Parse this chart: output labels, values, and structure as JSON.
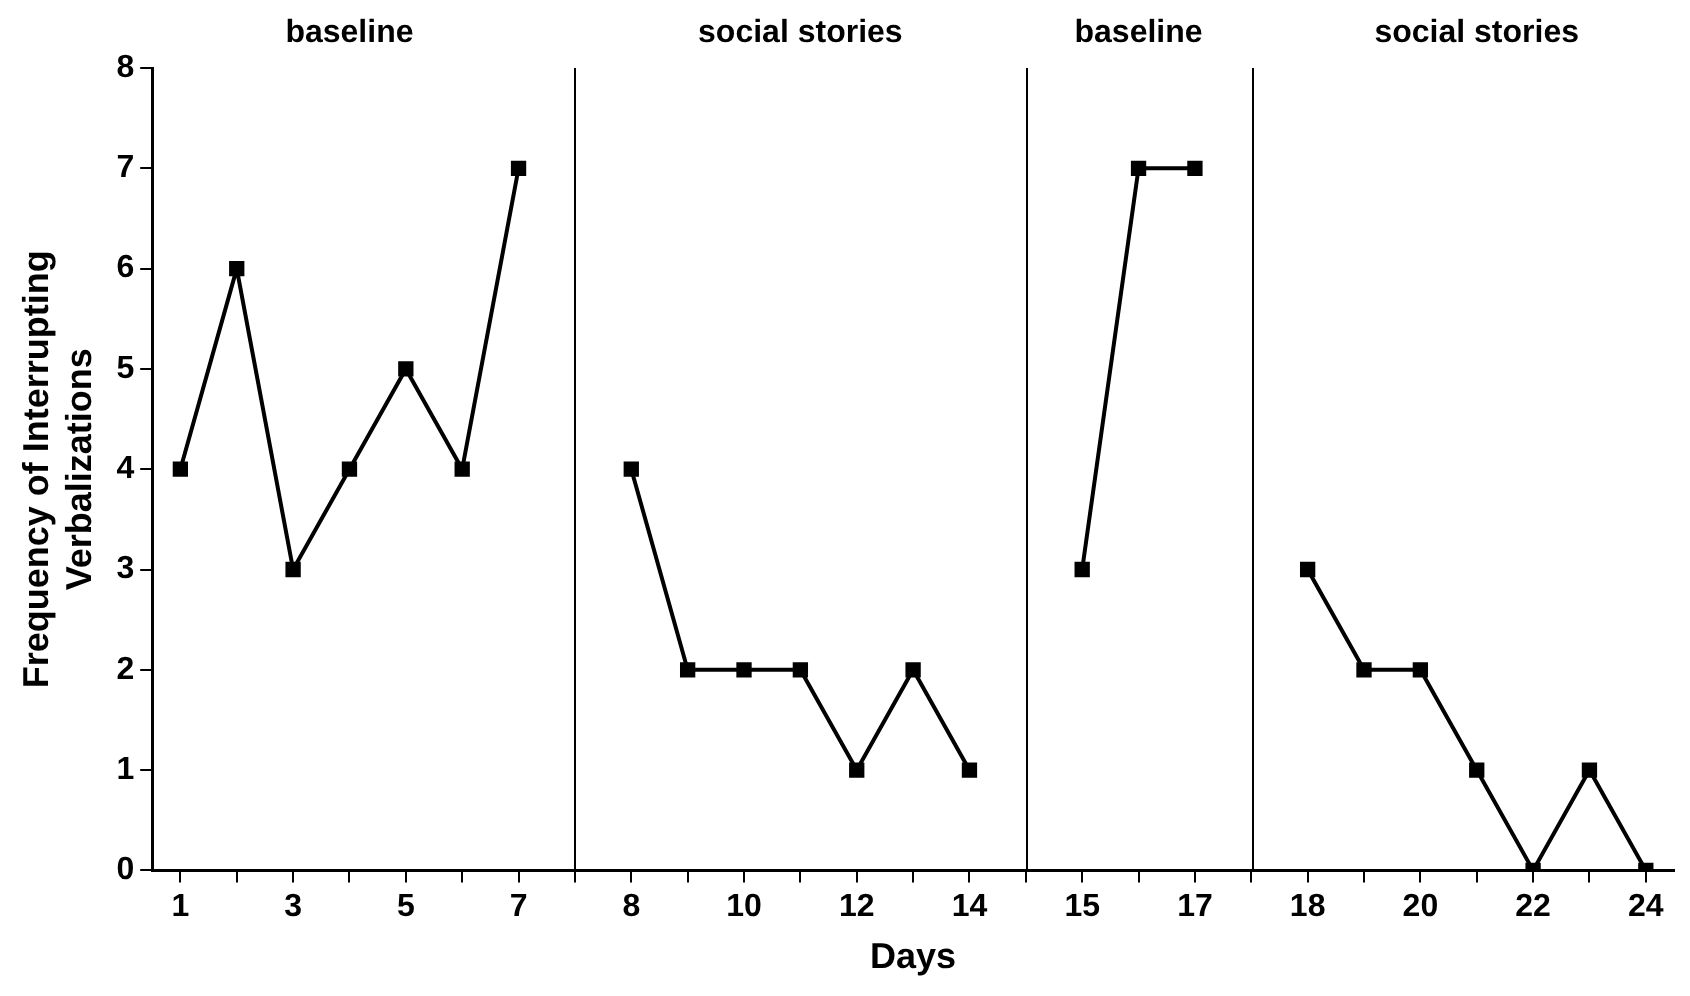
{
  "chart_data": {
    "type": "line",
    "xlabel": "Days",
    "ylabel": "Frequency of Interrupting Verbalizations",
    "annotations": [
      "baseline",
      "social stories",
      "baseline",
      "social stories"
    ],
    "categories": [
      "1",
      null,
      "3",
      null,
      "5",
      null,
      "7",
      null,
      "8",
      null,
      "10",
      null,
      "12",
      null,
      "14",
      null,
      "15",
      null,
      "17",
      null,
      "18",
      null,
      "20",
      null,
      "22",
      null,
      "24"
    ],
    "series": [
      {
        "color": "#000000",
        "values": [
          4,
          6,
          3,
          4,
          5,
          4,
          7,
          null,
          4,
          2,
          2,
          2,
          1,
          2,
          1,
          null,
          3,
          7,
          7,
          null,
          3,
          2,
          2,
          1,
          0,
          1,
          0
        ]
      }
    ],
    "ylim": [
      0,
      8
    ],
    "yticks": [
      0,
      1,
      2,
      3,
      4,
      5,
      6,
      7,
      8
    ],
    "grid": false,
    "legend": false,
    "marker": "square",
    "line_style": "solid"
  }
}
